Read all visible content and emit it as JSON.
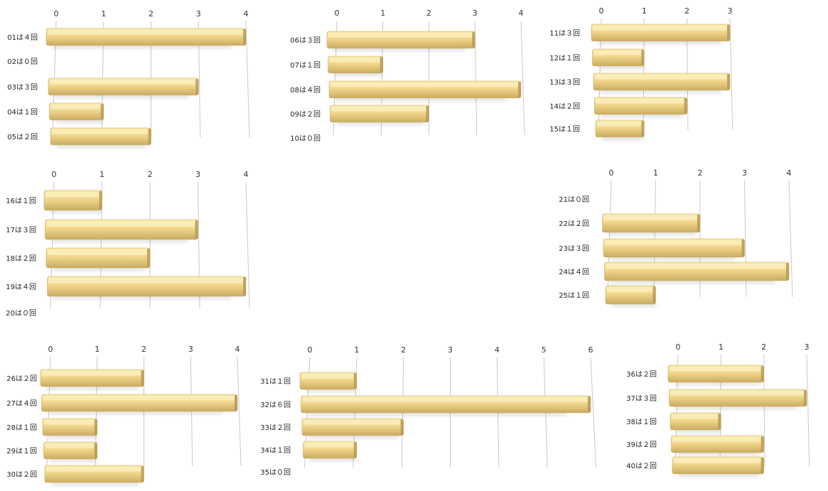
{
  "colors": {
    "bar_top": "#f8e7a6",
    "bar_mid": "#f1d68a",
    "bar_bottom": "#c9ac62",
    "bar_end": "#b99a55",
    "grid": "#c9c9c9",
    "text": "#222222"
  },
  "chart_data": [
    {
      "type": "bar",
      "orientation": "horizontal",
      "categories": [
        "01は４回",
        "02は０回",
        "03は３回",
        "04は１回",
        "05は２回"
      ],
      "values": [
        4,
        0,
        3,
        1,
        2
      ],
      "xlim": [
        0,
        4
      ],
      "ticks": [
        "0",
        "1",
        "2",
        "3",
        "4"
      ]
    },
    {
      "type": "bar",
      "orientation": "horizontal",
      "categories": [
        "06は３回",
        "07は１回",
        "08は４回",
        "09は２回",
        "10は０回"
      ],
      "values": [
        3,
        1,
        4,
        2,
        0
      ],
      "xlim": [
        0,
        4
      ],
      "ticks": [
        "0",
        "1",
        "2",
        "3",
        "4"
      ]
    },
    {
      "type": "bar",
      "orientation": "horizontal",
      "categories": [
        "11は３回",
        "12は１回",
        "13は３回",
        "14は２回",
        "15は１回"
      ],
      "values": [
        3,
        1,
        3,
        2,
        1
      ],
      "xlim": [
        0,
        3
      ],
      "ticks": [
        "0",
        "1",
        "2",
        "3"
      ]
    },
    {
      "type": "bar",
      "orientation": "horizontal",
      "categories": [
        "16は１回",
        "17は３回",
        "18は２回",
        "19は４回",
        "20は０回"
      ],
      "values": [
        1,
        3,
        2,
        4,
        0
      ],
      "xlim": [
        0,
        4
      ],
      "ticks": [
        "0",
        "1",
        "2",
        "3",
        "4"
      ]
    },
    {
      "type": "bar",
      "orientation": "horizontal",
      "categories": [
        "21は０回",
        "22は２回",
        "23は３回",
        "24は４回",
        "25は１回"
      ],
      "values": [
        0,
        2,
        3,
        4,
        1
      ],
      "xlim": [
        0,
        4
      ],
      "ticks": [
        "0",
        "1",
        "2",
        "3",
        "4"
      ]
    },
    {
      "type": "bar",
      "orientation": "horizontal",
      "categories": [
        "26は２回",
        "27は４回",
        "28は１回",
        "29は１回",
        "30は２回"
      ],
      "values": [
        2,
        4,
        1,
        1,
        2
      ],
      "xlim": [
        0,
        4
      ],
      "ticks": [
        "0",
        "1",
        "2",
        "3",
        "4"
      ]
    },
    {
      "type": "bar",
      "orientation": "horizontal",
      "categories": [
        "31は１回",
        "32は６回",
        "33は２回",
        "34は１回",
        "35は０回"
      ],
      "values": [
        1,
        6,
        2,
        1,
        0
      ],
      "xlim": [
        0,
        6
      ],
      "ticks": [
        "0",
        "1",
        "2",
        "3",
        "4",
        "5",
        "6"
      ]
    },
    {
      "type": "bar",
      "orientation": "horizontal",
      "categories": [
        "36は２回",
        "37は３回",
        "38は１回",
        "39は２回",
        "40は２回"
      ],
      "values": [
        2,
        3,
        1,
        2,
        2
      ],
      "xlim": [
        0,
        3
      ],
      "ticks": [
        "0",
        "1",
        "2",
        "3"
      ]
    }
  ]
}
